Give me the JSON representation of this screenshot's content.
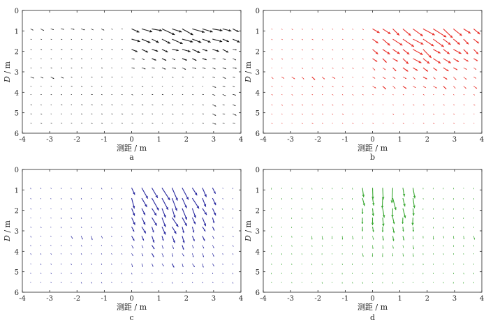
{
  "chart_data": [
    {
      "type": "quiver",
      "panel_label": "a",
      "xlabel": "测距 / m",
      "ylabel_italic": "D",
      "ylabel_unit": " / m",
      "xlim": [
        -4,
        4
      ],
      "ylim": [
        0,
        6
      ],
      "y_inverted": true,
      "xticks": [
        -4,
        -3,
        -2,
        -1,
        0,
        1,
        2,
        3,
        4
      ],
      "yticks": [
        0,
        1,
        2,
        3,
        4,
        5,
        6
      ],
      "color": "#1a1a1a",
      "rows": [
        0.9,
        1.4,
        1.9,
        2.35,
        2.8,
        3.25,
        3.7,
        4.1,
        4.6,
        5.05,
        5.5
      ],
      "active_region": {
        "x_from": -0.3,
        "x_to": 3.8,
        "y_from": 0.9,
        "y_to": 2.8
      },
      "left_band": {
        "x_from": -3.7,
        "x_to": -1.0,
        "y_from": 0.9,
        "y_to": 0.9
      },
      "left_band2": {
        "x_from": -3.7,
        "x_to": -2.6,
        "y_from": 3.2,
        "y_to": 3.2
      },
      "right_column": {
        "x_from": 2.8,
        "x_to": 3.8,
        "y_from": 3.2,
        "y_to": 5.5
      },
      "direction": "east-southeast",
      "peak_magnitude": 0.55
    },
    {
      "type": "quiver",
      "panel_label": "b",
      "xlabel": "测距 / m",
      "ylabel_italic": "D",
      "ylabel_unit": " / m",
      "xlim": [
        -4,
        4
      ],
      "ylim": [
        0,
        6
      ],
      "y_inverted": true,
      "xticks": [
        -4,
        -3,
        -2,
        -1,
        0,
        1,
        2,
        3,
        4
      ],
      "yticks": [
        0,
        1,
        2,
        3,
        4,
        5,
        6
      ],
      "color": "#e8302a",
      "rows": [
        0.9,
        1.4,
        1.9,
        2.35,
        2.8,
        3.25,
        3.7,
        4.1,
        4.6,
        5.05,
        5.5
      ],
      "active_region": {
        "x_from": 0.0,
        "x_to": 3.8,
        "y_from": 0.9,
        "y_to": 3.7
      },
      "left_band": {
        "x_from": -3.7,
        "x_to": -1.2,
        "y_from": 3.2,
        "y_to": 3.2
      },
      "direction": "southeast",
      "peak_magnitude": 0.6
    },
    {
      "type": "quiver",
      "panel_label": "c",
      "xlabel": "测距 / m",
      "ylabel_italic": "D",
      "ylabel_unit": " / m",
      "xlim": [
        -4,
        4
      ],
      "ylim": [
        0,
        6
      ],
      "y_inverted": true,
      "xticks": [
        -4,
        -3,
        -2,
        -1,
        0,
        1,
        2,
        3,
        4
      ],
      "yticks": [
        0,
        1,
        2,
        3,
        4,
        5,
        6
      ],
      "color": "#2a2aa0",
      "rows": [
        0.9,
        1.4,
        1.9,
        2.35,
        2.8,
        3.25,
        3.7,
        4.1,
        4.6,
        5.05,
        5.5
      ],
      "active_region": {
        "x_from": -0.3,
        "x_to": 3.0,
        "y_from": 0.9,
        "y_to": 4.6
      },
      "left_band": {
        "x_from": -2.3,
        "x_to": -1.0,
        "y_from": 3.2,
        "y_to": 3.2
      },
      "direction": "south-southeast",
      "peak_magnitude": 0.6
    },
    {
      "type": "quiver",
      "panel_label": "d",
      "xlabel": "测距 / m",
      "ylabel_italic": "D",
      "ylabel_unit": " / m",
      "xlim": [
        -4,
        4
      ],
      "ylim": [
        0,
        6
      ],
      "y_inverted": true,
      "xticks": [
        -4,
        -3,
        -2,
        -1,
        0,
        1,
        2,
        3,
        4
      ],
      "yticks": [
        0,
        1,
        2,
        3,
        4,
        5,
        6
      ],
      "color": "#3aa832",
      "rows": [
        0.9,
        1.4,
        1.9,
        2.35,
        2.8,
        3.25,
        3.7,
        4.1,
        4.6,
        5.05,
        5.5
      ],
      "active_region": {
        "x_from": -0.5,
        "x_to": 1.8,
        "y_from": 0.9,
        "y_to": 4.1
      },
      "left_band": {
        "x_from": -2.3,
        "x_to": 3.8,
        "y_from": 3.2,
        "y_to": 3.2
      },
      "direction": "south",
      "peak_magnitude": 0.55
    }
  ]
}
